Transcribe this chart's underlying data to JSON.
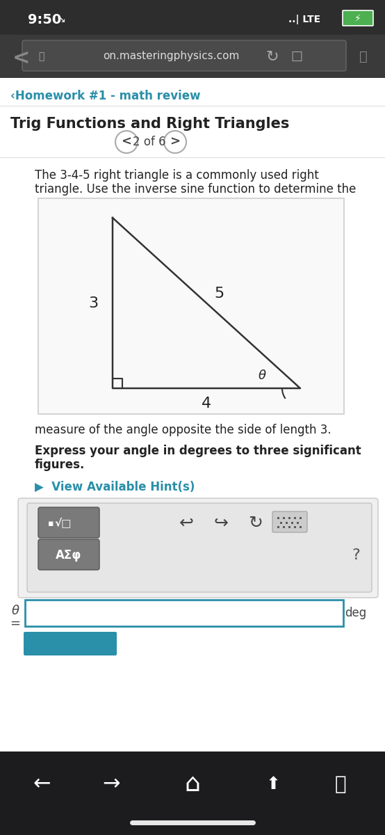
{
  "status_bar_bg": "#2d2d2d",
  "status_time": "9:50",
  "status_lte": "LTE",
  "browser_bg": "#3a3a3a",
  "url_text": "on.masteringphysics.com",
  "content_bg": "#ffffff",
  "back_link_color": "#2a8fa8",
  "back_link_text": "‹Homework #1 - math review",
  "title_text": "Trig Functions and Right Triangles",
  "nav_text": "2 of 6",
  "problem_text_1": "The 3-4-5 right triangle is a commonly used right",
  "problem_text_2": "triangle. Use the inverse sine function to determine the",
  "problem_text_3": "measure of the angle opposite the side of length 3.",
  "bold_text_1": "Express your angle in degrees to three significant",
  "bold_text_2": "figures.",
  "hint_color": "#2a8fa8",
  "hint_text": "▶  View Available Hint(s)",
  "label_3": "3",
  "label_4": "4",
  "label_5": "5",
  "label_theta": "θ",
  "side_label_color": "#222222",
  "input_border": "#2a8fa8",
  "deg_text": "deg",
  "bottom_nav_bg": "#1c1c1e",
  "question_mark": "?"
}
